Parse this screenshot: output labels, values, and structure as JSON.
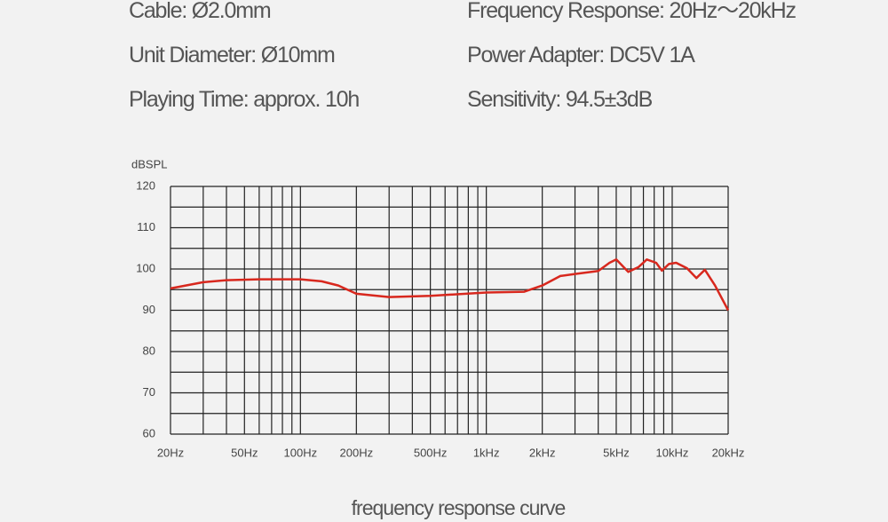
{
  "specs": [
    "Cable: Ø2.0mm",
    "Frequency Response: 20Hz～20kHz",
    "Unit Diameter: Ø10mm",
    "Power Adapter: DC5V 1A",
    "Playing Time: approx. 10h",
    "Sensitivity: 94.5±3dB"
  ],
  "chart_data": {
    "type": "line",
    "y_label": "dBSPL",
    "caption": "frequency response curve",
    "xscale": "log",
    "grid": true,
    "xlim": [
      20,
      20000
    ],
    "ylim": [
      60,
      120
    ],
    "xticks": [
      {
        "value": 20,
        "label": "20Hz"
      },
      {
        "value": 50,
        "label": "50Hz"
      },
      {
        "value": 100,
        "label": "100Hz"
      },
      {
        "value": 200,
        "label": "200Hz"
      },
      {
        "value": 500,
        "label": "500Hz"
      },
      {
        "value": 1000,
        "label": "1kHz"
      },
      {
        "value": 2000,
        "label": "2kHz"
      },
      {
        "value": 5000,
        "label": "5kHz"
      },
      {
        "value": 10000,
        "label": "10kHz"
      },
      {
        "value": 20000,
        "label": "20kHz"
      }
    ],
    "xgrid_minor": [
      30,
      40,
      60,
      70,
      80,
      90,
      300,
      400,
      600,
      700,
      800,
      900,
      3000,
      4000,
      6000,
      7000,
      8000,
      9000
    ],
    "yticks": [
      60,
      70,
      80,
      90,
      100,
      110,
      120
    ],
    "ygrid_minor": [
      65,
      75,
      85,
      95,
      105,
      115
    ],
    "series": [
      {
        "color": "#d8281e",
        "x": [
          20,
          30,
          40,
          60,
          100,
          130,
          160,
          200,
          300,
          500,
          1000,
          1600,
          2000,
          2500,
          3000,
          4000,
          4600,
          5000,
          5800,
          6600,
          7300,
          8200,
          8800,
          9600,
          10500,
          12000,
          13500,
          15000,
          17000,
          20000
        ],
        "values": [
          95.3,
          96.8,
          97.3,
          97.5,
          97.5,
          97.0,
          96.0,
          94.0,
          93.2,
          93.5,
          94.3,
          94.5,
          96.0,
          98.3,
          98.8,
          99.5,
          101.5,
          102.3,
          99.3,
          100.5,
          102.3,
          101.5,
          99.6,
          101.2,
          101.5,
          100.2,
          97.8,
          99.8,
          96.0,
          90.0
        ]
      }
    ]
  }
}
